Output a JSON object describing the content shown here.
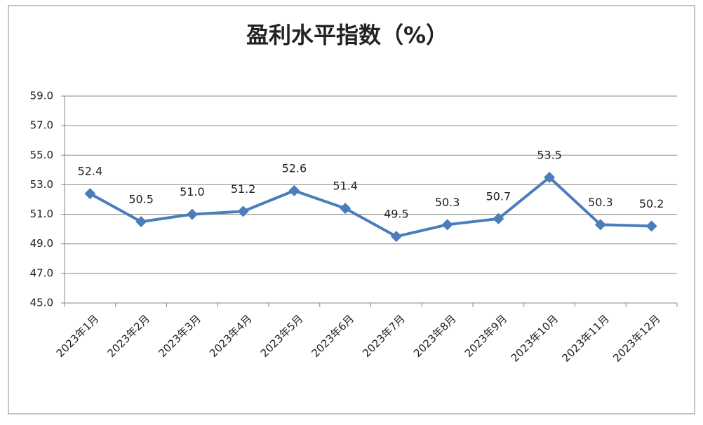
{
  "chart_data": {
    "type": "line",
    "title": "盈利水平指数（%）",
    "categories": [
      "2023年1月",
      "2023年2月",
      "2023年3月",
      "2023年4月",
      "2023年5月",
      "2023年6月",
      "2023年7月",
      "2023年8月",
      "2023年9月",
      "2023年10月",
      "2023年11月",
      "2023年12月"
    ],
    "values": [
      52.4,
      50.5,
      51.0,
      51.2,
      52.6,
      51.4,
      49.5,
      50.3,
      50.7,
      53.5,
      50.3,
      50.2
    ],
    "value_labels": [
      "52.4",
      "50.5",
      "51.0",
      "51.2",
      "52.6",
      "51.4",
      "49.5",
      "50.3",
      "50.7",
      "53.5",
      "50.3",
      "50.2"
    ],
    "color": "#4a7ebb",
    "ylim": [
      45,
      59
    ],
    "yticks": [
      {
        "value": 45,
        "label": "45.0"
      },
      {
        "value": 47,
        "label": "47.0"
      },
      {
        "value": 49,
        "label": "49.0"
      },
      {
        "value": 51,
        "label": "51.0"
      },
      {
        "value": 53,
        "label": "53.0"
      },
      {
        "value": 55,
        "label": "55.0"
      },
      {
        "value": 57,
        "label": "57.0"
      },
      {
        "value": 59,
        "label": "59.0"
      }
    ],
    "grid": true
  }
}
